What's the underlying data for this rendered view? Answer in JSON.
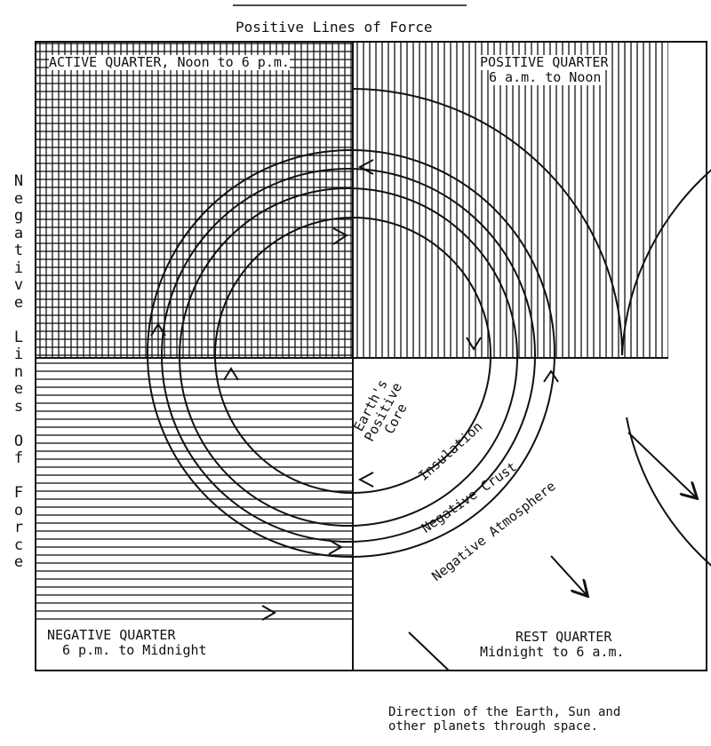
{
  "title": "Positive Lines of Force",
  "side_label": "Negative Lines Of Force",
  "quarters": {
    "active": {
      "name": "ACTIVE QUARTER, Noon to 6 p.m."
    },
    "positive": {
      "name": "POSITIVE QUARTER",
      "time": "6 a.m. to Noon"
    },
    "negative": {
      "name": "NEGATIVE QUARTER",
      "time": "6 p.m. to Midnight"
    },
    "rest": {
      "name": "REST QUARTER",
      "time": "Midnight to 6 a.m."
    }
  },
  "layers": {
    "core": [
      "Earth's",
      "Positive",
      "Core"
    ],
    "insulation": "Insulation",
    "crust": "Negative Crust",
    "atmosphere": "Negative Atmosphere"
  },
  "caption": [
    "Direction of the Earth, Sun and",
    "other planets through space."
  ],
  "colors": {
    "ink": "#111111",
    "paper": "#ffffff"
  }
}
